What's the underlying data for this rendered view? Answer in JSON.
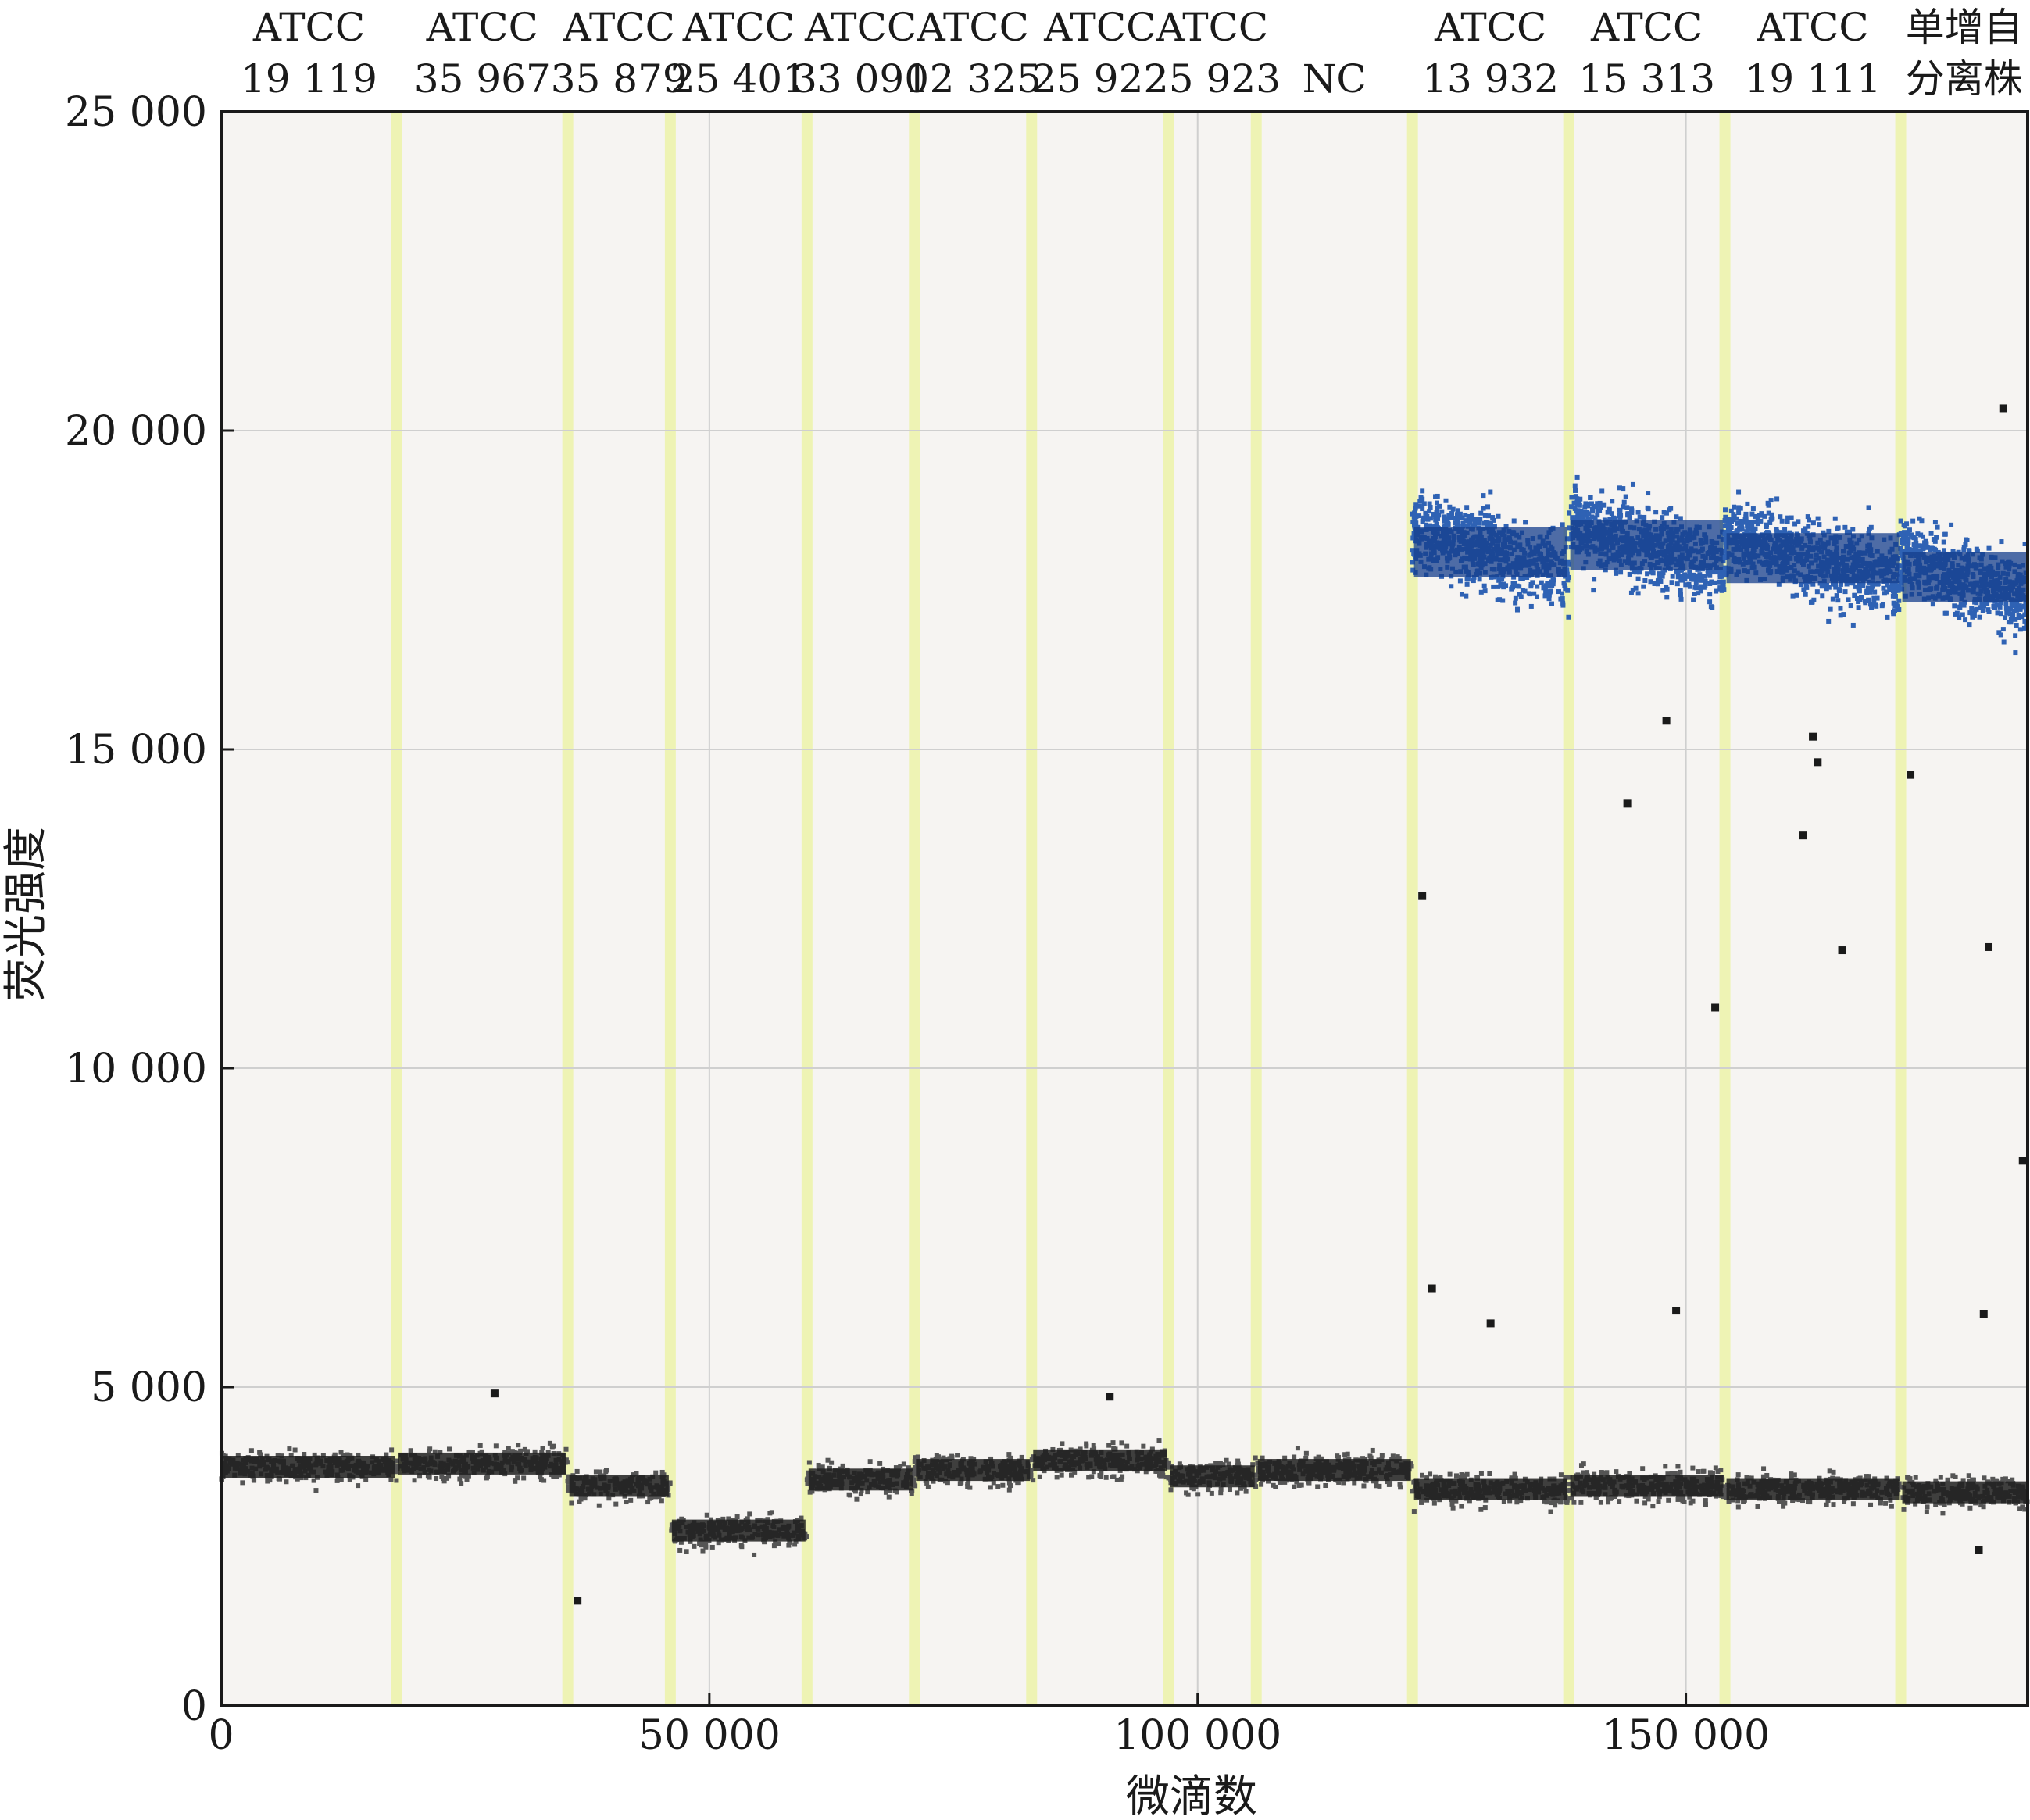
{
  "chart_data": {
    "type": "scatter",
    "title": "",
    "xlabel": "微滴数",
    "ylabel": "荧光强度",
    "xlim": [
      0,
      185000
    ],
    "ylim": [
      0,
      25000
    ],
    "x_ticks": [
      0,
      50000,
      100000,
      150000
    ],
    "x_tick_labels": [
      "0",
      "50 000",
      "100 000",
      "150 000"
    ],
    "y_ticks": [
      0,
      5000,
      10000,
      15000,
      20000,
      25000
    ],
    "y_tick_labels": [
      "0",
      "5 000",
      "10 000",
      "15 000",
      "20 000",
      "25 000"
    ],
    "grid": true,
    "colors": {
      "negative": "#555555",
      "negative_core": "#1e1e1e",
      "positive": "#2f62b4",
      "positive_core": "#163f8c",
      "separator": "#eef3b4",
      "plot_bg": "#f6f4f2",
      "grid": "#cfcfcf"
    },
    "groups": [
      {
        "line1": "ATCC",
        "line2": "19 119",
        "x_start": 0,
        "x_end": 18000,
        "positive_mean": null,
        "negative_mean": 3750
      },
      {
        "line1": "ATCC",
        "line2": "35 967",
        "x_start": 18000,
        "x_end": 35500,
        "positive_mean": null,
        "negative_mean": 3800
      },
      {
        "line1": "ATCC",
        "line2": "35 879",
        "x_start": 35500,
        "x_end": 46000,
        "positive_mean": null,
        "negative_mean": 3450
      },
      {
        "line1": "ATCC",
        "line2": "25 401",
        "x_start": 46000,
        "x_end": 60000,
        "positive_mean": null,
        "negative_mean": 2750
      },
      {
        "line1": "ATCC",
        "line2": "33 090",
        "x_start": 60000,
        "x_end": 71000,
        "positive_mean": null,
        "negative_mean": 3550
      },
      {
        "line1": "ATCC",
        "line2": "12 325",
        "x_start": 71000,
        "x_end": 83000,
        "positive_mean": null,
        "negative_mean": 3700
      },
      {
        "line1": "ATCC",
        "line2": "25 922",
        "x_start": 83000,
        "x_end": 97000,
        "positive_mean": null,
        "negative_mean": 3850
      },
      {
        "line1": "ATCC",
        "line2": "25 923",
        "x_start": 97000,
        "x_end": 106000,
        "positive_mean": null,
        "negative_mean": 3600
      },
      {
        "line1": "",
        "line2": "NC",
        "x_start": 106000,
        "x_end": 122000,
        "positive_mean": null,
        "negative_mean": 3700
      },
      {
        "line1": "ATCC",
        "line2": "13 932",
        "x_start": 122000,
        "x_end": 138000,
        "positive_mean": 18100,
        "negative_mean": 3400
      },
      {
        "line1": "ATCC",
        "line2": "15 313",
        "x_start": 138000,
        "x_end": 154000,
        "positive_mean": 18200,
        "negative_mean": 3450
      },
      {
        "line1": "ATCC",
        "line2": "19 111",
        "x_start": 154000,
        "x_end": 172000,
        "positive_mean": 18000,
        "negative_mean": 3400
      },
      {
        "line1": "单增自",
        "line2": "分离株",
        "x_start": 172000,
        "x_end": 185000,
        "positive_mean": 17700,
        "negative_mean": 3350
      }
    ],
    "outliers": [
      [
        123000,
        12700
      ],
      [
        124000,
        6550
      ],
      [
        130000,
        6000
      ],
      [
        144000,
        14150
      ],
      [
        148000,
        15450
      ],
      [
        149000,
        6200
      ],
      [
        153000,
        10950
      ],
      [
        162000,
        13650
      ],
      [
        166000,
        11850
      ],
      [
        173000,
        14600
      ],
      [
        181000,
        11900
      ],
      [
        180500,
        6150
      ],
      [
        184500,
        8550
      ],
      [
        182500,
        20350
      ],
      [
        163000,
        15200
      ],
      [
        163500,
        14800
      ],
      [
        28000,
        4900
      ],
      [
        36500,
        1650
      ],
      [
        91000,
        4850
      ],
      [
        180000,
        2450
      ]
    ]
  }
}
